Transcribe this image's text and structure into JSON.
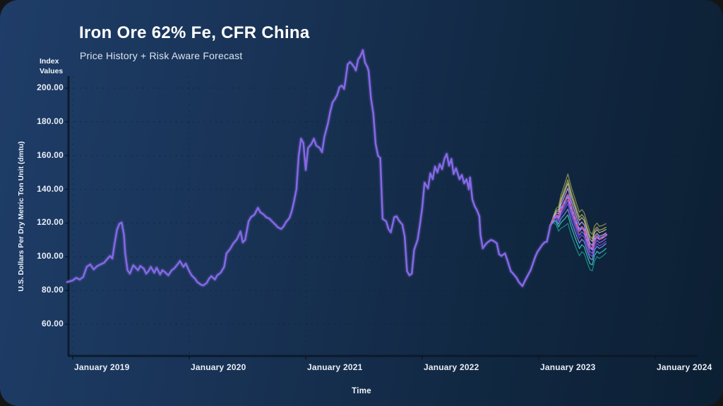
{
  "header": {
    "title": "Iron Ore 62% Fe, CFR China",
    "subtitle": "Price History + Risk Aware Forecast"
  },
  "chart_data": {
    "type": "line",
    "title": "Iron Ore 62% Fe, CFR China",
    "subtitle": "Price History + Risk Aware Forecast",
    "xlabel": "Time",
    "ylabel": "U.S. Dollars Per Dry Metric Ton Unit (dmtu)",
    "ylabel_top": "Index Values",
    "grid": "dashed",
    "legend": "none",
    "x_ticks": [
      "January 2019",
      "January 2020",
      "January 2021",
      "January 2022",
      "January 2023",
      "January 2024"
    ],
    "x_tick_values": [
      2019,
      2020,
      2021,
      2022,
      2023,
      2024
    ],
    "y_ticks": [
      "200.00",
      "180.00",
      "160.00",
      "140.00",
      "120.00",
      "100.00",
      "80.00",
      "60.00"
    ],
    "y_tick_values": [
      200,
      180,
      160,
      140,
      120,
      100,
      80,
      60
    ],
    "xlim": [
      2018.93,
      2024.35
    ],
    "ylim": [
      41,
      206
    ],
    "colors": {
      "background_start": "#1e3d68",
      "background_end": "#0c1f33",
      "history_line": "#8468e6",
      "forecast_median": "#a078ff",
      "forecast_median_dash": "#e04a32",
      "grid_line": "#0b1a2d",
      "axis_line": "#0a1626",
      "text": "#e9eef7"
    },
    "series": [
      {
        "name": "Price History",
        "color": "#8468e6",
        "points": [
          [
            2018.95,
            85
          ],
          [
            2019.0,
            86
          ],
          [
            2019.03,
            87.5
          ],
          [
            2019.06,
            86.5
          ],
          [
            2019.09,
            88
          ],
          [
            2019.12,
            94
          ],
          [
            2019.15,
            95.5
          ],
          [
            2019.18,
            92.5
          ],
          [
            2019.21,
            94.5
          ],
          [
            2019.24,
            95.5
          ],
          [
            2019.27,
            96.5
          ],
          [
            2019.3,
            99
          ],
          [
            2019.32,
            100.5
          ],
          [
            2019.34,
            99
          ],
          [
            2019.36,
            108
          ],
          [
            2019.38,
            116
          ],
          [
            2019.4,
            119.5
          ],
          [
            2019.42,
            120.3
          ],
          [
            2019.44,
            113
          ],
          [
            2019.45,
            102
          ],
          [
            2019.47,
            92
          ],
          [
            2019.49,
            90
          ],
          [
            2019.52,
            95
          ],
          [
            2019.54,
            93.5
          ],
          [
            2019.56,
            92
          ],
          [
            2019.58,
            94.5
          ],
          [
            2019.61,
            93
          ],
          [
            2019.63,
            90
          ],
          [
            2019.65,
            91.5
          ],
          [
            2019.67,
            94
          ],
          [
            2019.7,
            90.5
          ],
          [
            2019.72,
            93.5
          ],
          [
            2019.75,
            89.5
          ],
          [
            2019.77,
            92
          ],
          [
            2019.79,
            91
          ],
          [
            2019.82,
            89
          ],
          [
            2019.85,
            92
          ],
          [
            2019.87,
            93
          ],
          [
            2019.9,
            95.5
          ],
          [
            2019.92,
            97.5
          ],
          [
            2019.95,
            94
          ],
          [
            2019.97,
            96
          ],
          [
            2020.0,
            91.5
          ],
          [
            2020.02,
            89
          ],
          [
            2020.05,
            87
          ],
          [
            2020.07,
            85
          ],
          [
            2020.1,
            83.5
          ],
          [
            2020.12,
            83
          ],
          [
            2020.15,
            84.5
          ],
          [
            2020.17,
            87
          ],
          [
            2020.19,
            88.5
          ],
          [
            2020.22,
            86.5
          ],
          [
            2020.24,
            89
          ],
          [
            2020.27,
            90.5
          ],
          [
            2020.3,
            94
          ],
          [
            2020.32,
            102
          ],
          [
            2020.35,
            104.5
          ],
          [
            2020.38,
            108
          ],
          [
            2020.41,
            110.5
          ],
          [
            2020.44,
            115
          ],
          [
            2020.46,
            108.5
          ],
          [
            2020.48,
            110
          ],
          [
            2020.51,
            121
          ],
          [
            2020.53,
            123.5
          ],
          [
            2020.56,
            125
          ],
          [
            2020.59,
            129
          ],
          [
            2020.61,
            126.5
          ],
          [
            2020.64,
            125
          ],
          [
            2020.66,
            123.5
          ],
          [
            2020.69,
            122.5
          ],
          [
            2020.71,
            121
          ],
          [
            2020.74,
            119
          ],
          [
            2020.76,
            117.5
          ],
          [
            2020.79,
            116.5
          ],
          [
            2020.81,
            118
          ],
          [
            2020.83,
            120.5
          ],
          [
            2020.86,
            123
          ],
          [
            2020.88,
            127
          ],
          [
            2020.9,
            133
          ],
          [
            2020.92,
            140
          ],
          [
            2020.94,
            160
          ],
          [
            2020.96,
            170
          ],
          [
            2020.98,
            167.5
          ],
          [
            2021.0,
            151.5
          ],
          [
            2021.02,
            164.5
          ],
          [
            2021.05,
            167
          ],
          [
            2021.07,
            170
          ],
          [
            2021.09,
            166
          ],
          [
            2021.12,
            164.5
          ],
          [
            2021.14,
            162
          ],
          [
            2021.16,
            171
          ],
          [
            2021.19,
            179
          ],
          [
            2021.21,
            186
          ],
          [
            2021.23,
            191.5
          ],
          [
            2021.25,
            193.5
          ],
          [
            2021.27,
            196
          ],
          [
            2021.29,
            200.5
          ],
          [
            2021.31,
            201.5
          ],
          [
            2021.33,
            199.5
          ],
          [
            2021.34,
            204
          ],
          [
            2021.36,
            214
          ],
          [
            2021.38,
            215.5
          ],
          [
            2021.4,
            214
          ],
          [
            2021.42,
            212
          ],
          [
            2021.43,
            210.5
          ],
          [
            2021.45,
            217
          ],
          [
            2021.47,
            219
          ],
          [
            2021.49,
            222.5
          ],
          [
            2021.51,
            215
          ],
          [
            2021.53,
            212.5
          ],
          [
            2021.54,
            210
          ],
          [
            2021.56,
            194
          ],
          [
            2021.58,
            185
          ],
          [
            2021.6,
            167
          ],
          [
            2021.62,
            160
          ],
          [
            2021.64,
            158.5
          ],
          [
            2021.66,
            122.5
          ],
          [
            2021.69,
            121
          ],
          [
            2021.71,
            116.5
          ],
          [
            2021.73,
            114.5
          ],
          [
            2021.76,
            123.5
          ],
          [
            2021.78,
            124
          ],
          [
            2021.8,
            121.5
          ],
          [
            2021.83,
            119
          ],
          [
            2021.85,
            112
          ],
          [
            2021.87,
            91.5
          ],
          [
            2021.89,
            89
          ],
          [
            2021.91,
            90
          ],
          [
            2021.93,
            104
          ],
          [
            2021.96,
            110
          ],
          [
            2021.98,
            119
          ],
          [
            2022.0,
            129
          ],
          [
            2022.02,
            144
          ],
          [
            2022.05,
            140.5
          ],
          [
            2022.07,
            149.5
          ],
          [
            2022.09,
            146
          ],
          [
            2022.11,
            153.5
          ],
          [
            2022.13,
            150
          ],
          [
            2022.15,
            155
          ],
          [
            2022.17,
            152
          ],
          [
            2022.19,
            158
          ],
          [
            2022.21,
            161
          ],
          [
            2022.23,
            154
          ],
          [
            2022.25,
            158
          ],
          [
            2022.27,
            149
          ],
          [
            2022.29,
            152.5
          ],
          [
            2022.32,
            146
          ],
          [
            2022.34,
            148.5
          ],
          [
            2022.36,
            143.5
          ],
          [
            2022.38,
            146
          ],
          [
            2022.4,
            140
          ],
          [
            2022.41,
            147
          ],
          [
            2022.43,
            134
          ],
          [
            2022.45,
            130
          ],
          [
            2022.47,
            127.5
          ],
          [
            2022.49,
            124
          ],
          [
            2022.5,
            113
          ],
          [
            2022.52,
            105
          ],
          [
            2022.54,
            107
          ],
          [
            2022.56,
            108.5
          ],
          [
            2022.59,
            110
          ],
          [
            2022.61,
            109.5
          ],
          [
            2022.64,
            108
          ],
          [
            2022.66,
            101.5
          ],
          [
            2022.68,
            100.5
          ],
          [
            2022.71,
            102
          ],
          [
            2022.73,
            98
          ],
          [
            2022.76,
            91.5
          ],
          [
            2022.78,
            90
          ],
          [
            2022.81,
            87.5
          ],
          [
            2022.83,
            85
          ],
          [
            2022.86,
            82.6
          ],
          [
            2022.88,
            85.5
          ],
          [
            2022.91,
            89.5
          ],
          [
            2022.93,
            92
          ],
          [
            2022.95,
            96
          ],
          [
            2022.97,
            100
          ],
          [
            2022.99,
            103
          ],
          [
            2023.01,
            105
          ],
          [
            2023.03,
            107
          ],
          [
            2023.05,
            108.5
          ],
          [
            2023.07,
            109
          ],
          [
            2023.08,
            112
          ],
          [
            2023.1,
            118.6
          ]
        ]
      },
      {
        "name": "Risk Aware Forecast (median)",
        "color": "#a078ff",
        "dash_overlay_color": "#e04a32",
        "points": [
          [
            2023.1,
            118.6
          ],
          [
            2023.13,
            123
          ],
          [
            2023.15,
            124.5
          ],
          [
            2023.17,
            123.5
          ],
          [
            2023.19,
            128
          ],
          [
            2023.22,
            132
          ],
          [
            2023.25,
            136.5
          ],
          [
            2023.28,
            129
          ],
          [
            2023.31,
            123
          ],
          [
            2023.33,
            119
          ],
          [
            2023.35,
            115.5
          ],
          [
            2023.37,
            117.5
          ],
          [
            2023.39,
            116
          ],
          [
            2023.42,
            109.5
          ],
          [
            2023.44,
            105.5
          ],
          [
            2023.46,
            104.5
          ],
          [
            2023.48,
            110
          ],
          [
            2023.5,
            112
          ],
          [
            2023.52,
            110.5
          ],
          [
            2023.55,
            111.5
          ],
          [
            2023.58,
            113
          ]
        ]
      }
    ],
    "forecast_fan": {
      "peak_index": 6,
      "lines": [
        {
          "name": "upper-band-4",
          "color": "#8f8f4b",
          "peak_offset": 12.6,
          "end_offset": 6.7
        },
        {
          "name": "upper-band-3",
          "color": "#a6a960",
          "peak_offset": 9.2,
          "end_offset": 4.6
        },
        {
          "name": "upper-band-2",
          "color": "#c2bd8d",
          "peak_offset": 7.1,
          "end_offset": 3.3
        },
        {
          "name": "upper-band-1",
          "color": "#bfa5f5",
          "peak_offset": 4.2,
          "end_offset": 1.2
        },
        {
          "name": "lower-band-1",
          "color": "#8a64f0",
          "peak_offset": -2.9,
          "end_offset": -2.1
        },
        {
          "name": "lower-band-2",
          "color": "#6f4fd8",
          "peak_offset": -5.0,
          "end_offset": -3.8
        },
        {
          "name": "lower-band-3",
          "color": "#7d8cec",
          "peak_offset": -8.3,
          "end_offset": -5.1
        },
        {
          "name": "lower-band-4",
          "color": "#34c4bc",
          "peak_offset": -11.7,
          "end_offset": -8.0
        },
        {
          "name": "lower-band-5",
          "color": "#1d8d88",
          "peak_offset": -16.7,
          "end_offset": -10.6
        }
      ]
    }
  }
}
